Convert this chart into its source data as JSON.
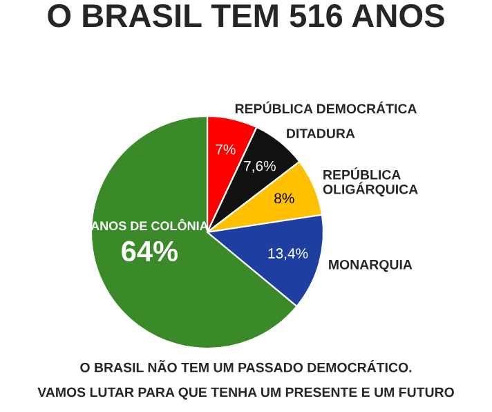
{
  "chart_data": {
    "type": "pie",
    "title": "O BRASIL TEM 516 ANOS",
    "categories": [
      "REPÚBLICA DEMOCRÁTICA",
      "DITADURA",
      "REPÚBLICA\nOLIGÁRQUICA",
      "MONARQUIA",
      "ANOS DE COLÔNIA"
    ],
    "values": [
      7,
      7.6,
      8,
      13.4,
      64
    ],
    "value_labels": [
      "7%",
      "7,6%",
      "8%",
      "13,4%",
      "64%"
    ],
    "colors": [
      "#ff0000",
      "#111111",
      "#ffc000",
      "#1f3fa0",
      "#3a8a2a"
    ],
    "annotations": [
      "O BRASIL NÃO TEM UM PASSADO DEMOCRÁTICO.",
      "VAMOS LUTAR PARA QUE TENHA UM PRESENTE E UM FUTURO"
    ]
  }
}
